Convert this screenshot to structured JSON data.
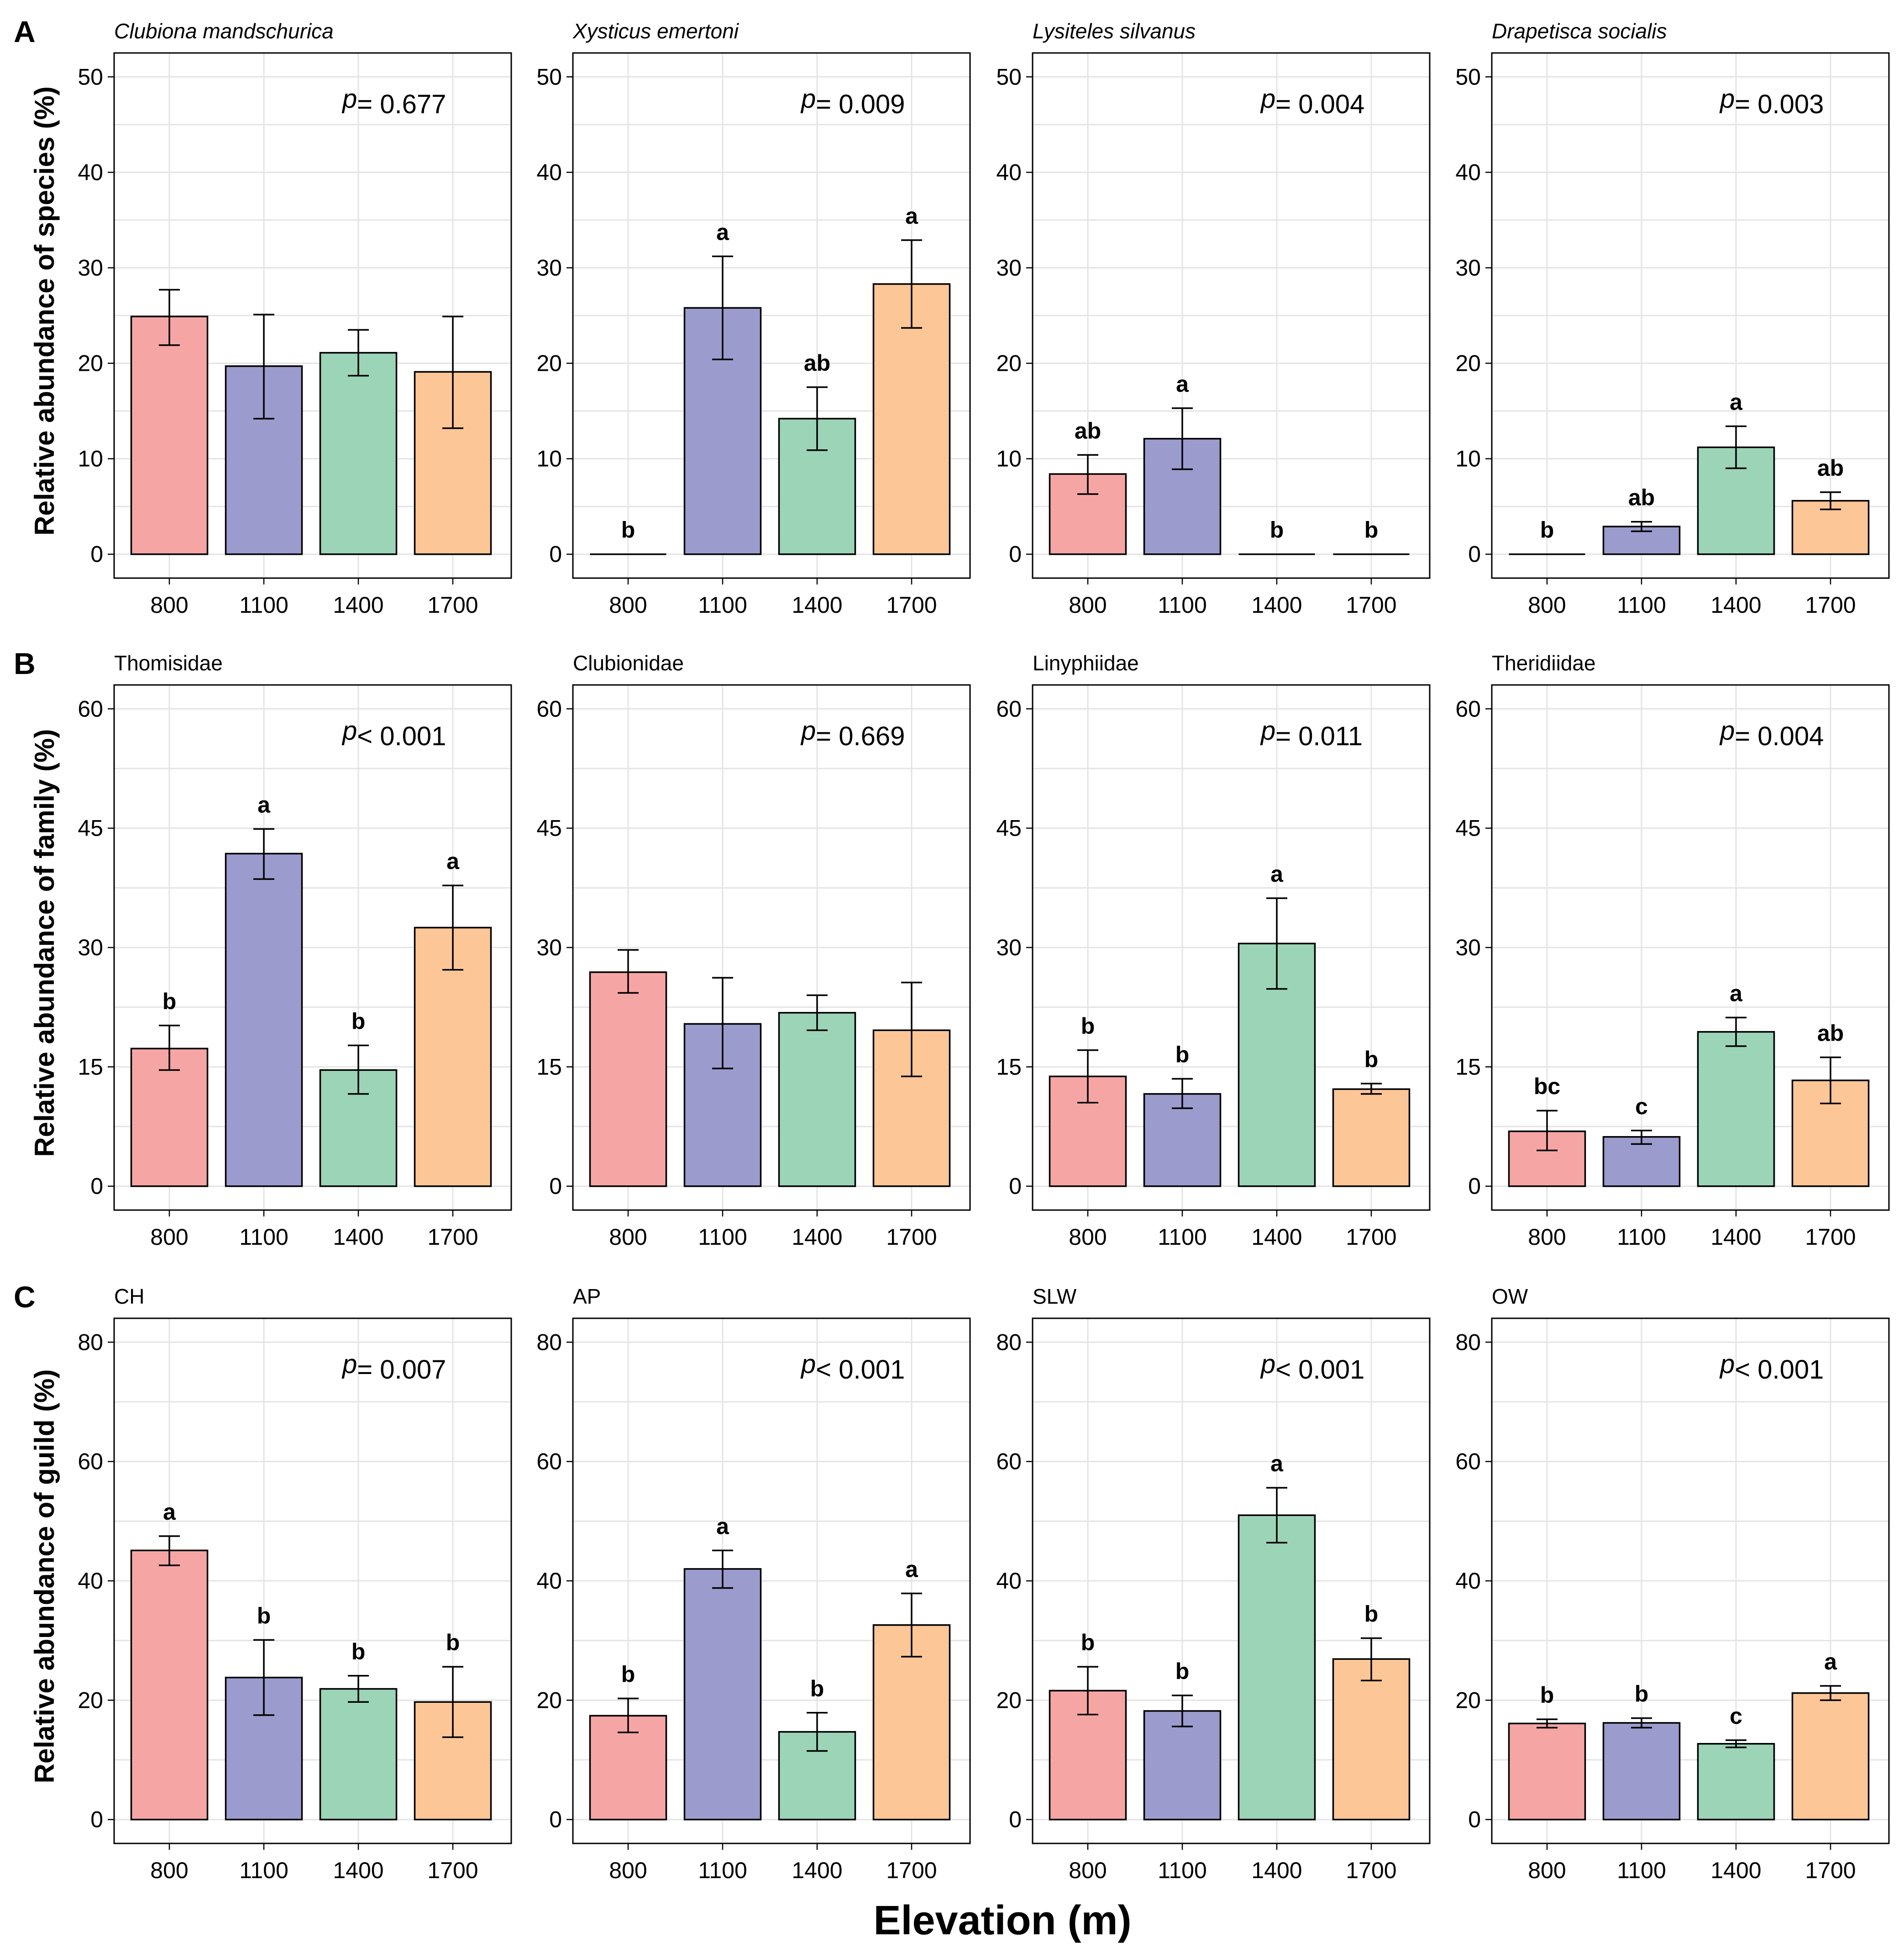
{
  "figure": {
    "x_axis_label": "Elevation (m)",
    "colors": {
      "800": "#f6a5a5",
      "1100": "#9b9bcd",
      "1400": "#9cd4b7",
      "1700": "#fdc697"
    },
    "rows": [
      {
        "tag": "A",
        "ylabel": "Relative abundance of species (%)",
        "title_style": "italic"
      },
      {
        "tag": "B",
        "ylabel": "Relative abundance of family (%)",
        "title_style": "normal"
      },
      {
        "tag": "C",
        "ylabel": "Relative abundance of guild (%)",
        "title_style": "normal"
      }
    ]
  },
  "chart_data": [
    {
      "type": "bar",
      "row": 0,
      "col": 0,
      "title": "Clubiona mandschurica",
      "p_label": "p",
      "p_text": "= 0.677",
      "categories": [
        "800",
        "1100",
        "1400",
        "1700"
      ],
      "values": [
        24.9,
        19.7,
        21.1,
        19.1
      ],
      "err_low": [
        21.9,
        14.2,
        18.7,
        13.2
      ],
      "err_high": [
        27.7,
        25.1,
        23.5,
        24.9
      ],
      "letters": [
        "",
        "",
        "",
        ""
      ],
      "ylim": [
        -2.5,
        52.5
      ],
      "yticks": [
        0,
        10,
        20,
        30,
        40,
        50
      ]
    },
    {
      "type": "bar",
      "row": 0,
      "col": 1,
      "title": "Xysticus emertoni",
      "p_label": "p",
      "p_text": "= 0.009",
      "categories": [
        "800",
        "1100",
        "1400",
        "1700"
      ],
      "values": [
        0,
        25.8,
        14.2,
        28.3
      ],
      "err_low": [
        0,
        20.4,
        10.9,
        23.7
      ],
      "err_high": [
        0,
        31.2,
        17.5,
        32.9
      ],
      "letters": [
        "b",
        "a",
        "ab",
        "a"
      ],
      "ylim": [
        -2.5,
        52.5
      ],
      "yticks": [
        0,
        10,
        20,
        30,
        40,
        50
      ]
    },
    {
      "type": "bar",
      "row": 0,
      "col": 2,
      "title": "Lysiteles silvanus",
      "p_label": "p",
      "p_text": "= 0.004",
      "categories": [
        "800",
        "1100",
        "1400",
        "1700"
      ],
      "values": [
        8.4,
        12.1,
        0,
        0
      ],
      "err_low": [
        6.3,
        8.9,
        0,
        0
      ],
      "err_high": [
        10.4,
        15.3,
        0,
        0
      ],
      "letters": [
        "ab",
        "a",
        "b",
        "b"
      ],
      "ylim": [
        -2.5,
        52.5
      ],
      "yticks": [
        0,
        10,
        20,
        30,
        40,
        50
      ]
    },
    {
      "type": "bar",
      "row": 0,
      "col": 3,
      "title": "Drapetisca socialis",
      "p_label": "p",
      "p_text": "= 0.003",
      "categories": [
        "800",
        "1100",
        "1400",
        "1700"
      ],
      "values": [
        0,
        2.9,
        11.2,
        5.6
      ],
      "err_low": [
        0,
        2.4,
        9.0,
        4.7
      ],
      "err_high": [
        0,
        3.4,
        13.4,
        6.5
      ],
      "letters": [
        "b",
        "ab",
        "a",
        "ab"
      ],
      "ylim": [
        -2.5,
        52.5
      ],
      "yticks": [
        0,
        10,
        20,
        30,
        40,
        50
      ]
    },
    {
      "type": "bar",
      "row": 1,
      "col": 0,
      "title": "Thomisidae",
      "p_label": "p",
      "p_text": "< 0.001",
      "categories": [
        "800",
        "1100",
        "1400",
        "1700"
      ],
      "values": [
        17.3,
        41.8,
        14.6,
        32.5
      ],
      "err_low": [
        14.6,
        38.6,
        11.6,
        27.2
      ],
      "err_high": [
        20.2,
        44.9,
        17.7,
        37.8
      ],
      "letters": [
        "b",
        "a",
        "b",
        "a"
      ],
      "ylim": [
        -3,
        63
      ],
      "yticks": [
        0,
        15,
        30,
        45,
        60
      ]
    },
    {
      "type": "bar",
      "row": 1,
      "col": 1,
      "title": "Clubionidae",
      "p_label": "p",
      "p_text": "= 0.669",
      "categories": [
        "800",
        "1100",
        "1400",
        "1700"
      ],
      "values": [
        26.9,
        20.4,
        21.8,
        19.6
      ],
      "err_low": [
        24.3,
        14.8,
        19.6,
        13.8
      ],
      "err_high": [
        29.7,
        26.2,
        24.0,
        25.6
      ],
      "letters": [
        "",
        "",
        "",
        ""
      ],
      "ylim": [
        -3,
        63
      ],
      "yticks": [
        0,
        15,
        30,
        45,
        60
      ]
    },
    {
      "type": "bar",
      "row": 1,
      "col": 2,
      "title": "Linyphiidae",
      "p_label": "p",
      "p_text": "= 0.011",
      "categories": [
        "800",
        "1100",
        "1400",
        "1700"
      ],
      "values": [
        13.8,
        11.6,
        30.5,
        12.2
      ],
      "err_low": [
        10.5,
        9.8,
        24.8,
        11.6
      ],
      "err_high": [
        17.1,
        13.5,
        36.2,
        12.9
      ],
      "letters": [
        "b",
        "b",
        "a",
        "b"
      ],
      "ylim": [
        -3,
        63
      ],
      "yticks": [
        0,
        15,
        30,
        45,
        60
      ]
    },
    {
      "type": "bar",
      "row": 1,
      "col": 3,
      "title": "Theridiidae",
      "p_label": "p",
      "p_text": "= 0.004",
      "categories": [
        "800",
        "1100",
        "1400",
        "1700"
      ],
      "values": [
        6.9,
        6.2,
        19.4,
        13.3
      ],
      "err_low": [
        4.5,
        5.3,
        17.6,
        10.4
      ],
      "err_high": [
        9.5,
        7.0,
        21.2,
        16.2
      ],
      "letters": [
        "bc",
        "c",
        "a",
        "ab"
      ],
      "ylim": [
        -3,
        63
      ],
      "yticks": [
        0,
        15,
        30,
        45,
        60
      ]
    },
    {
      "type": "bar",
      "row": 2,
      "col": 0,
      "title": "CH",
      "p_label": "p",
      "p_text": "= 0.007",
      "categories": [
        "800",
        "1100",
        "1400",
        "1700"
      ],
      "values": [
        45.1,
        23.8,
        21.9,
        19.7
      ],
      "err_low": [
        42.6,
        17.5,
        19.7,
        13.8
      ],
      "err_high": [
        47.5,
        30.1,
        24.1,
        25.6
      ],
      "letters": [
        "a",
        "b",
        "b",
        "b"
      ],
      "ylim": [
        -4,
        84
      ],
      "yticks": [
        0,
        20,
        40,
        60,
        80
      ]
    },
    {
      "type": "bar",
      "row": 2,
      "col": 1,
      "title": "AP",
      "p_label": "p",
      "p_text": "< 0.001",
      "categories": [
        "800",
        "1100",
        "1400",
        "1700"
      ],
      "values": [
        17.4,
        42.0,
        14.7,
        32.6
      ],
      "err_low": [
        14.6,
        38.8,
        11.5,
        27.3
      ],
      "err_high": [
        20.3,
        45.1,
        17.9,
        37.9
      ],
      "letters": [
        "b",
        "a",
        "b",
        "a"
      ],
      "ylim": [
        -4,
        84
      ],
      "yticks": [
        0,
        20,
        40,
        60,
        80
      ]
    },
    {
      "type": "bar",
      "row": 2,
      "col": 2,
      "title": "SLW",
      "p_label": "p",
      "p_text": "< 0.001",
      "categories": [
        "800",
        "1100",
        "1400",
        "1700"
      ],
      "values": [
        21.6,
        18.2,
        51.0,
        26.9
      ],
      "err_low": [
        17.6,
        15.6,
        46.4,
        23.3
      ],
      "err_high": [
        25.6,
        20.8,
        55.6,
        30.4
      ],
      "letters": [
        "b",
        "b",
        "a",
        "b"
      ],
      "ylim": [
        -4,
        84
      ],
      "yticks": [
        0,
        20,
        40,
        60,
        80
      ]
    },
    {
      "type": "bar",
      "row": 2,
      "col": 3,
      "title": "OW",
      "p_label": "p",
      "p_text": "< 0.001",
      "categories": [
        "800",
        "1100",
        "1400",
        "1700"
      ],
      "values": [
        16.1,
        16.2,
        12.7,
        21.2
      ],
      "err_low": [
        15.4,
        15.4,
        12.1,
        20.0
      ],
      "err_high": [
        16.8,
        17.0,
        13.3,
        22.4
      ],
      "letters": [
        "b",
        "b",
        "c",
        "a"
      ],
      "ylim": [
        -4,
        84
      ],
      "yticks": [
        0,
        20,
        40,
        60,
        80
      ]
    }
  ]
}
